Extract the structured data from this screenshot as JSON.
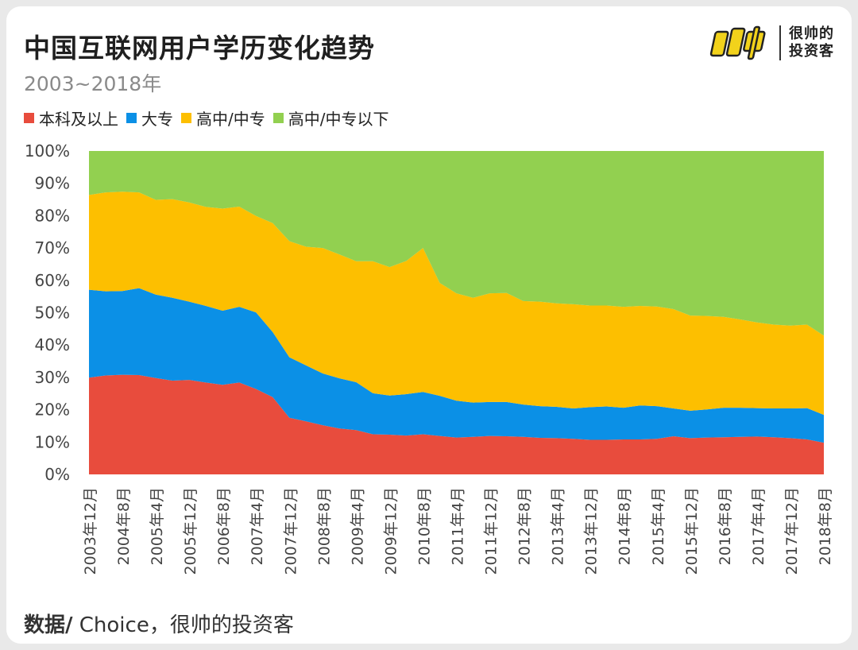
{
  "title": "中国互联网用户学历变化趋势",
  "subtitle": "2003~2018年",
  "brand": {
    "line1": "很帅的",
    "line2": "投资客",
    "logo_icon": "shuai-logo-icon"
  },
  "source": {
    "label": "数据/",
    "text": " Choice，很帅的投资客"
  },
  "chart_data": {
    "type": "area",
    "stacked": true,
    "percent": true,
    "ylim": [
      0,
      100
    ],
    "yticks": [
      "0%",
      "10%",
      "20%",
      "30%",
      "40%",
      "50%",
      "60%",
      "70%",
      "80%",
      "90%",
      "100%"
    ],
    "legend_position": "top-left",
    "x": [
      "2003年12月",
      "2004年4月",
      "2004年8月",
      "2004年12月",
      "2005年4月",
      "2005年8月",
      "2005年12月",
      "2006年4月",
      "2006年8月",
      "2006年12月",
      "2007年4月",
      "2007年8月",
      "2007年12月",
      "2008年4月",
      "2008年8月",
      "2008年12月",
      "2009年4月",
      "2009年8月",
      "2009年12月",
      "2010年4月",
      "2010年8月",
      "2010年12月",
      "2011年4月",
      "2011年8月",
      "2011年12月",
      "2012年4月",
      "2012年8月",
      "2012年12月",
      "2013年4月",
      "2013年8月",
      "2013年12月",
      "2014年4月",
      "2014年8月",
      "2014年12月",
      "2015年4月",
      "2015年8月",
      "2015年12月",
      "2016年4月",
      "2016年8月",
      "2016年12月",
      "2017年4月",
      "2017年8月",
      "2017年12月",
      "2018年4月",
      "2018年8月"
    ],
    "xtick_labels_shown": [
      "2003年12月",
      "2004年8月",
      "2005年4月",
      "2005年12月",
      "2006年8月",
      "2007年4月",
      "2007年12月",
      "2008年8月",
      "2009年4月",
      "2009年12月",
      "2010年8月",
      "2011年4月",
      "2011年12月",
      "2012年8月",
      "2013年4月",
      "2013年12月",
      "2014年8月",
      "2015年4月",
      "2015年12月",
      "2016年8月",
      "2017年4月",
      "2017年12月",
      "2018年8月"
    ],
    "series": [
      {
        "name": "本科及以上",
        "color": "#e84c3d",
        "values": [
          29.9,
          30.6,
          30.8,
          30.7,
          29.8,
          29.0,
          29.2,
          28.4,
          27.7,
          28.4,
          26.4,
          23.9,
          17.5,
          16.4,
          15.2,
          14.2,
          13.7,
          12.4,
          12.3,
          12.0,
          12.4,
          11.9,
          11.4,
          11.6,
          11.9,
          11.8,
          11.6,
          11.3,
          11.2,
          11.0,
          10.7,
          10.7,
          10.8,
          10.8,
          11.0,
          11.8,
          11.2,
          11.4,
          11.5,
          11.6,
          11.7,
          11.5,
          11.2,
          10.8,
          9.8
        ]
      },
      {
        "name": "大专",
        "color": "#0b90e6",
        "values": [
          27.2,
          26.0,
          25.9,
          26.9,
          25.8,
          25.6,
          24.2,
          23.7,
          22.9,
          23.4,
          23.7,
          20.1,
          18.7,
          17.3,
          16.0,
          15.5,
          14.8,
          12.7,
          12.1,
          12.8,
          13.1,
          12.4,
          11.4,
          10.6,
          10.5,
          10.6,
          10.0,
          9.8,
          9.7,
          9.4,
          10.1,
          10.3,
          9.8,
          10.5,
          10.1,
          8.6,
          8.5,
          8.7,
          9.1,
          9.0,
          8.8,
          8.9,
          9.2,
          9.7,
          8.6
        ]
      },
      {
        "name": "高中/中专",
        "color": "#fdbf00",
        "values": [
          29.3,
          30.6,
          30.7,
          29.6,
          29.3,
          30.5,
          30.7,
          30.6,
          31.6,
          31.0,
          29.8,
          33.7,
          35.9,
          36.7,
          38.8,
          38.3,
          37.4,
          40.8,
          39.7,
          41.2,
          44.5,
          34.9,
          33.2,
          32.4,
          33.6,
          33.7,
          32.0,
          32.3,
          32.0,
          32.2,
          31.4,
          31.2,
          31.2,
          30.8,
          30.8,
          30.7,
          29.4,
          28.9,
          28.1,
          27.3,
          26.5,
          25.9,
          25.6,
          25.8,
          24.5
        ]
      },
      {
        "name": "高中/中专以下",
        "color": "#92d050",
        "values": [
          13.6,
          12.8,
          12.6,
          12.8,
          15.1,
          14.9,
          15.9,
          17.3,
          17.8,
          17.2,
          20.1,
          22.3,
          27.9,
          29.6,
          30.0,
          32.0,
          34.1,
          34.1,
          35.9,
          34.0,
          30.0,
          40.8,
          44.0,
          45.4,
          44.0,
          43.9,
          46.4,
          46.6,
          47.1,
          47.4,
          47.8,
          47.8,
          48.2,
          47.9,
          48.1,
          48.9,
          50.9,
          51.0,
          51.3,
          52.1,
          53.0,
          53.7,
          54.0,
          53.7,
          57.1
        ]
      }
    ]
  }
}
